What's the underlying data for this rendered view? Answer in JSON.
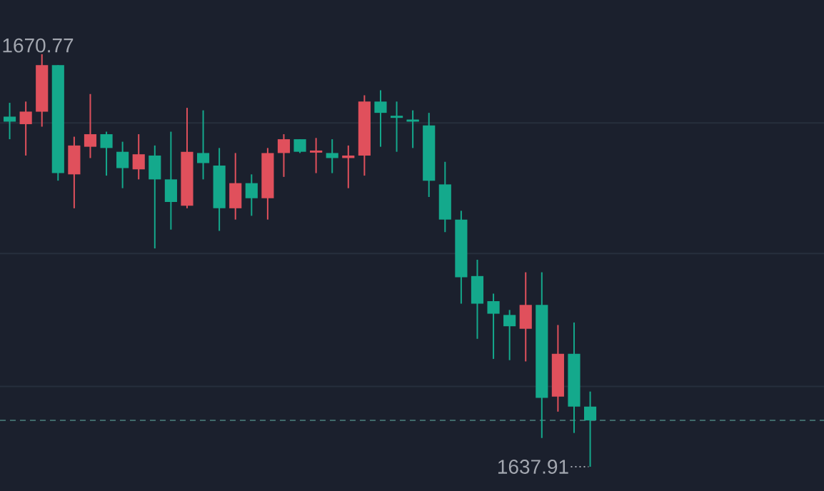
{
  "chart_data": {
    "type": "candlestick",
    "categories": [
      null,
      null,
      null,
      null,
      null,
      null,
      null,
      null,
      null,
      null,
      null,
      null,
      null,
      null,
      null,
      null,
      null,
      null,
      null,
      null,
      null,
      null,
      null,
      null,
      null,
      null,
      null,
      null,
      null,
      null,
      null,
      null,
      null,
      null,
      null,
      null,
      null
    ],
    "ohlc": [
      [
        1665.8,
        1666.9,
        1664.0,
        1665.4
      ],
      [
        1665.2,
        1667.0,
        1662.7,
        1666.2
      ],
      [
        1666.2,
        1670.77,
        1665.0,
        1669.9
      ],
      [
        1669.9,
        1669.9,
        1660.7,
        1661.3
      ],
      [
        1661.2,
        1664.2,
        1658.5,
        1663.5
      ],
      [
        1663.4,
        1667.6,
        1662.5,
        1664.4
      ],
      [
        1664.4,
        1664.6,
        1661.1,
        1663.3
      ],
      [
        1663.0,
        1663.8,
        1660.1,
        1661.7
      ],
      [
        1661.6,
        1664.4,
        1660.8,
        1662.8
      ],
      [
        1662.7,
        1663.5,
        1655.3,
        1660.8
      ],
      [
        1660.8,
        1664.6,
        1656.8,
        1659.0
      ],
      [
        1658.7,
        1666.5,
        1658.5,
        1663.0
      ],
      [
        1662.9,
        1666.3,
        1660.8,
        1662.1
      ],
      [
        1661.9,
        1663.3,
        1656.7,
        1658.5
      ],
      [
        1658.5,
        1662.9,
        1657.6,
        1660.5
      ],
      [
        1660.5,
        1661.2,
        1657.9,
        1659.3
      ],
      [
        1659.3,
        1663.3,
        1657.6,
        1662.9
      ],
      [
        1662.9,
        1664.4,
        1661.0,
        1664.0
      ],
      [
        1664.0,
        1664.0,
        1662.9,
        1663.0
      ],
      [
        1663.0,
        1664.1,
        1661.3,
        1663.1
      ],
      [
        1662.9,
        1664.0,
        1661.3,
        1662.5
      ],
      [
        1662.5,
        1663.5,
        1660.1,
        1662.7
      ],
      [
        1662.7,
        1667.5,
        1661.1,
        1667.0
      ],
      [
        1667.0,
        1667.9,
        1663.4,
        1666.1
      ],
      [
        1665.8,
        1667.0,
        1663.0,
        1665.7
      ],
      [
        1665.5,
        1666.3,
        1663.3,
        1665.4
      ],
      [
        1665.1,
        1666.1,
        1659.4,
        1660.7
      ],
      [
        1660.4,
        1662.2,
        1656.6,
        1657.6
      ],
      [
        1657.6,
        1658.3,
        1650.9,
        1653.0
      ],
      [
        1653.1,
        1654.4,
        1648.1,
        1650.9
      ],
      [
        1651.1,
        1651.7,
        1646.5,
        1650.1
      ],
      [
        1650.0,
        1650.4,
        1646.4,
        1649.1
      ],
      [
        1648.9,
        1653.4,
        1646.3,
        1650.8
      ],
      [
        1650.8,
        1653.4,
        1640.2,
        1643.4
      ],
      [
        1643.5,
        1649.2,
        1642.3,
        1646.9
      ],
      [
        1646.9,
        1649.4,
        1640.6,
        1642.7
      ],
      [
        1642.7,
        1643.9,
        1637.91,
        1641.6
      ]
    ],
    "colors": [
      "#14a98c",
      "#e0505c",
      "#e0505c",
      "#14a98c",
      "#e0505c",
      "#e0505c",
      "#14a98c",
      "#14a98c",
      "#e0505c",
      "#14a98c",
      "#14a98c",
      "#e0505c",
      "#14a98c",
      "#14a98c",
      "#e0505c",
      "#14a98c",
      "#e0505c",
      "#e0505c",
      "#14a98c",
      "#e0505c",
      "#14a98c",
      "#e0505c",
      "#e0505c",
      "#14a98c",
      "#14a98c",
      "#14a98c",
      "#14a98c",
      "#14a98c",
      "#14a98c",
      "#14a98c",
      "#14a98c",
      "#14a98c",
      "#e0505c",
      "#14a98c",
      "#e0505c",
      "#14a98c",
      "#14a98c"
    ],
    "yticks": [
      {
        "value": 1665.3,
        "label": null
      },
      {
        "value": 1654.9,
        "label": null
      },
      {
        "value": 1644.3,
        "label": null
      }
    ],
    "grid": "y",
    "ref_lines": [
      {
        "axis": "y",
        "value": 1641.6,
        "color": "#3f6a6a",
        "line_style": "dashed"
      }
    ],
    "annotations": [
      "1670.77",
      "1637.91"
    ]
  }
}
